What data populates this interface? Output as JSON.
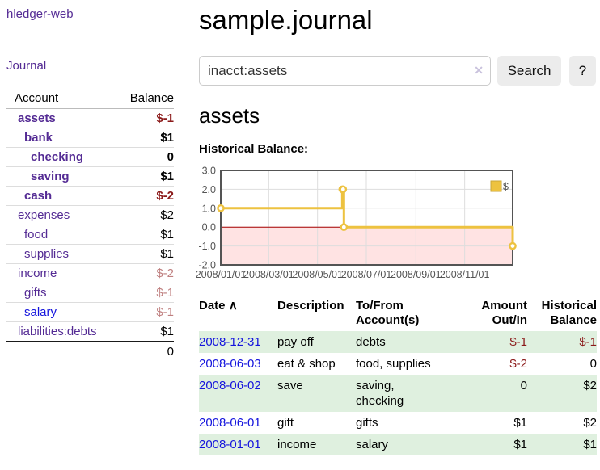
{
  "colors": {
    "link_purple": "#542b94",
    "link_blue": "#1414dd",
    "negative_strong": "#8b1a1a",
    "negative_soft": "#bf7f7f",
    "row_stripe_green": "#dff0df",
    "chart_series_gold": "#edc240",
    "chart_negative_fill": "#ffd9d9",
    "chart_zero_line": "#aa0000",
    "chart_border": "#545454",
    "chart_grid": "#dddddd"
  },
  "sidebar": {
    "app_title": "hledger-web",
    "nav": {
      "journal_label": "Journal"
    },
    "accounts_table": {
      "headers": {
        "account": "Account",
        "balance": "Balance"
      },
      "rows": [
        {
          "name": "assets",
          "balance": "$-1",
          "depth": 1,
          "bold": true,
          "balance_class": "neg",
          "link_class": "purple"
        },
        {
          "name": "bank",
          "balance": "$1",
          "depth": 2,
          "bold": true,
          "balance_class": "",
          "link_class": "purple"
        },
        {
          "name": "checking",
          "balance": "0",
          "depth": 3,
          "bold": true,
          "balance_class": "",
          "link_class": "purple"
        },
        {
          "name": "saving",
          "balance": "$1",
          "depth": 3,
          "bold": true,
          "balance_class": "",
          "link_class": "purple"
        },
        {
          "name": "cash",
          "balance": "$-2",
          "depth": 2,
          "bold": true,
          "balance_class": "neg",
          "link_class": "purple"
        },
        {
          "name": "expenses",
          "balance": "$2",
          "depth": 1,
          "bold": false,
          "balance_class": "",
          "link_class": "purple"
        },
        {
          "name": "food",
          "balance": "$1",
          "depth": 2,
          "bold": false,
          "balance_class": "",
          "link_class": "purple"
        },
        {
          "name": "supplies",
          "balance": "$1",
          "depth": 2,
          "bold": false,
          "balance_class": "",
          "link_class": "purple"
        },
        {
          "name": "income",
          "balance": "$-2",
          "depth": 1,
          "bold": false,
          "balance_class": "neg-soft",
          "link_class": "purple"
        },
        {
          "name": "gifts",
          "balance": "$-1",
          "depth": 2,
          "bold": false,
          "balance_class": "neg-soft",
          "link_class": "purple"
        },
        {
          "name": "salary",
          "balance": "$-1",
          "depth": 2,
          "bold": false,
          "balance_class": "neg-soft",
          "link_class": "blue"
        },
        {
          "name": "liabilities:debts",
          "balance": "$1",
          "depth": 1,
          "bold": false,
          "balance_class": "",
          "link_class": "purple"
        }
      ],
      "total": "0"
    }
  },
  "header": {
    "title": "sample.journal"
  },
  "search": {
    "value": "inacct:assets",
    "clear_icon": "✕",
    "search_button_label": "Search",
    "help_button_label": "?"
  },
  "account_page": {
    "title": "assets",
    "chart_heading": "Historical Balance:"
  },
  "chart_data": {
    "type": "line",
    "steps": true,
    "title": "Historical Balance",
    "xlabel": "",
    "ylabel": "",
    "ylim": [
      -2,
      3
    ],
    "xlim_days": [
      0,
      365
    ],
    "grid": true,
    "legend_position": "top-right",
    "legend": [
      {
        "label": "$",
        "color": "#edc240"
      }
    ],
    "y_ticks": [
      {
        "label": "3.0",
        "value": 3
      },
      {
        "label": "2.0",
        "value": 2
      },
      {
        "label": "1.0",
        "value": 1
      },
      {
        "label": "0.0",
        "value": 0
      },
      {
        "label": "-1.0",
        "value": -1
      },
      {
        "label": "-2.0",
        "value": -2
      }
    ],
    "x_ticks": [
      {
        "label": "2008/01/01",
        "day": 0
      },
      {
        "label": "2008/03/01",
        "day": 60
      },
      {
        "label": "2008/05/01",
        "day": 121
      },
      {
        "label": "2008/07/01",
        "day": 182
      },
      {
        "label": "2008/09/01",
        "day": 244
      },
      {
        "label": "2008/11/01",
        "day": 305
      }
    ],
    "series": [
      {
        "name": "$",
        "color": "#edc240",
        "points": [
          {
            "date": "2008-01-01",
            "day": 0,
            "value": 1
          },
          {
            "date": "2008-06-01",
            "day": 152,
            "value": 2
          },
          {
            "date": "2008-06-02",
            "day": 153,
            "value": 2
          },
          {
            "date": "2008-06-03",
            "day": 154,
            "value": 0
          },
          {
            "date": "2008-12-31",
            "day": 365,
            "value": -1
          }
        ]
      }
    ]
  },
  "transactions": {
    "sort_icon": "∧",
    "headers": {
      "date": "Date",
      "description": "Description",
      "accounts": "To/From Account(s)",
      "amount": "Amount Out/In",
      "balance": "Historical Balance"
    },
    "rows": [
      {
        "date": "2008-12-31",
        "description": "pay off",
        "accounts": "debts",
        "amount": "$-1",
        "amount_neg": true,
        "balance": "$-1",
        "balance_neg": true
      },
      {
        "date": "2008-06-03",
        "description": "eat & shop",
        "accounts": "food, supplies",
        "amount": "$-2",
        "amount_neg": true,
        "balance": "0",
        "balance_neg": false
      },
      {
        "date": "2008-06-02",
        "description": "save",
        "accounts": "saving, checking",
        "amount": "0",
        "amount_neg": false,
        "balance": "$2",
        "balance_neg": false
      },
      {
        "date": "2008-06-01",
        "description": "gift",
        "accounts": "gifts",
        "amount": "$1",
        "amount_neg": false,
        "balance": "$2",
        "balance_neg": false
      },
      {
        "date": "2008-01-01",
        "description": "income",
        "accounts": "salary",
        "amount": "$1",
        "amount_neg": false,
        "balance": "$1",
        "balance_neg": false
      }
    ]
  }
}
